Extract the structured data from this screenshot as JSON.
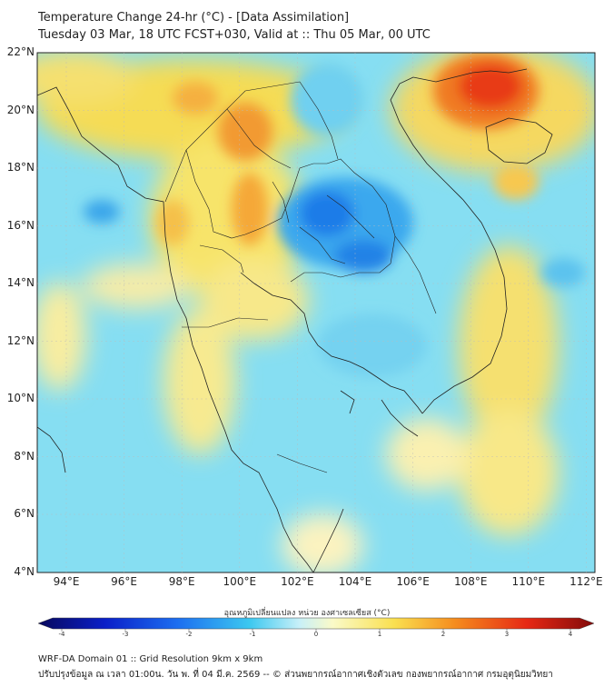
{
  "header": {
    "title": "Temperature Change 24-hr (°C) - [Data Assimilation]",
    "subtitle": "Tuesday 03 Mar, 18 UTC FCST+030, Valid at :: Thu 05 Mar, 00 UTC"
  },
  "map": {
    "lat_labels": [
      "22°N",
      "20°N",
      "18°N",
      "16°N",
      "14°N",
      "12°N",
      "10°N",
      "8°N",
      "6°N",
      "4°N"
    ],
    "lon_labels": [
      "94°E",
      "96°E",
      "98°E",
      "100°E",
      "102°E",
      "104°E",
      "106°E",
      "108°E",
      "110°E",
      "112°E"
    ]
  },
  "colorbar": {
    "title": "อุณหภูมิเปลี่ยนแปลง หน่วย องศาเซลเซียส (°C)",
    "ticks": [
      "-4",
      "-3",
      "-2",
      "-1",
      "0",
      "1",
      "2",
      "3",
      "4"
    ],
    "colors": [
      "#08085c",
      "#0a1fc8",
      "#1c6ef0",
      "#3cc8f0",
      "#c8f0f8",
      "#fafac8",
      "#fae050",
      "#f58c1e",
      "#e62814",
      "#820a0a"
    ]
  },
  "footer": {
    "line1": "WRF-DA Domain 01 :: Grid Resolution 9km x 9km",
    "line2": "ปรับปรุงข้อมูล ณ เวลา 01:00น. วัน พ. ที่ 04 มี.ค. 2569 -- © ส่วนพยากรณ์อากาศเชิงตัวเลข กองพยากรณ์อากาศ กรมอุตุนิยมวิทยา"
  }
}
